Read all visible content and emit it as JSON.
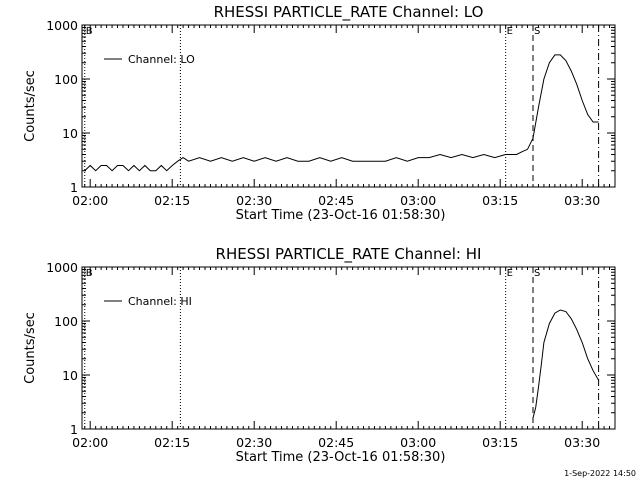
{
  "timestamp": "1-Sep-2022 14:50",
  "chart_data": [
    {
      "type": "line",
      "title": "RHESSI PARTICLE_RATE Channel: LO",
      "xlabel": "Start Time (23-Oct-16 01:58:30)",
      "ylabel": "Counts/sec",
      "y_scale": "log",
      "ylim": [
        1,
        1000
      ],
      "xlim": [
        "01:58:30",
        "03:36:00"
      ],
      "x_ticks": [
        "02:00",
        "02:15",
        "02:30",
        "02:45",
        "03:00",
        "03:15",
        "03:30"
      ],
      "y_ticks": [
        "1",
        "10",
        "100",
        "1000"
      ],
      "legend": {
        "position": "top-left",
        "entries": [
          "Channel: LO"
        ]
      },
      "markers": [
        {
          "label": "B",
          "time": "01:59:00",
          "style": "dotted"
        },
        {
          "label": "",
          "time": "02:16:30",
          "style": "dotted"
        },
        {
          "label": "E",
          "time": "03:16:00",
          "style": "dotted"
        },
        {
          "label": "S",
          "time": "03:21:00",
          "style": "dashed"
        },
        {
          "label": "",
          "time": "03:33:00",
          "style": "dash-dot"
        }
      ],
      "series": [
        {
          "name": "Channel: LO",
          "x": [
            "01:59:00",
            "02:00:00",
            "02:01:00",
            "02:02:00",
            "02:03:00",
            "02:04:00",
            "02:05:00",
            "02:06:00",
            "02:07:00",
            "02:08:00",
            "02:09:00",
            "02:10:00",
            "02:11:00",
            "02:12:00",
            "02:13:00",
            "02:14:00",
            "02:15:00",
            "02:16:00",
            "02:17:00",
            "02:18:00",
            "02:20:00",
            "02:22:00",
            "02:24:00",
            "02:26:00",
            "02:28:00",
            "02:30:00",
            "02:32:00",
            "02:34:00",
            "02:36:00",
            "02:38:00",
            "02:40:00",
            "02:42:00",
            "02:44:00",
            "02:46:00",
            "02:48:00",
            "02:50:00",
            "02:52:00",
            "02:54:00",
            "02:56:00",
            "02:58:00",
            "03:00:00",
            "03:02:00",
            "03:04:00",
            "03:06:00",
            "03:08:00",
            "03:10:00",
            "03:12:00",
            "03:14:00",
            "03:16:00",
            "03:17:00",
            "03:18:00",
            "03:19:00",
            "03:20:00",
            "03:21:00",
            "03:22:00",
            "03:23:00",
            "03:24:00",
            "03:25:00",
            "03:26:00",
            "03:27:00",
            "03:28:00",
            "03:29:00",
            "03:30:00",
            "03:31:00",
            "03:32:00",
            "03:33:00"
          ],
          "y": [
            2,
            2.5,
            2,
            2.5,
            2.5,
            2,
            2.5,
            2.5,
            2,
            2.5,
            2,
            2.5,
            2,
            2,
            2.5,
            2,
            2.5,
            3,
            3.5,
            3,
            3.5,
            3,
            3.5,
            3,
            3.5,
            3,
            3.5,
            3,
            3.5,
            3,
            3,
            3.5,
            3,
            3.5,
            3,
            3,
            3,
            3,
            3.5,
            3,
            3.5,
            3.5,
            4,
            3.5,
            4,
            3.5,
            4,
            3.5,
            4,
            4,
            4,
            4.5,
            5,
            8,
            30,
            100,
            200,
            280,
            280,
            220,
            140,
            80,
            40,
            22,
            16,
            16
          ]
        }
      ]
    },
    {
      "type": "line",
      "title": "RHESSI PARTICLE_RATE Channel: HI",
      "xlabel": "Start Time (23-Oct-16 01:58:30)",
      "ylabel": "Counts/sec",
      "y_scale": "log",
      "ylim": [
        1,
        1000
      ],
      "xlim": [
        "01:58:30",
        "03:36:00"
      ],
      "x_ticks": [
        "02:00",
        "02:15",
        "02:30",
        "02:45",
        "03:00",
        "03:15",
        "03:30"
      ],
      "y_ticks": [
        "1",
        "10",
        "100",
        "1000"
      ],
      "legend": {
        "position": "top-left",
        "entries": [
          "Channel: HI"
        ]
      },
      "markers": [
        {
          "label": "B",
          "time": "01:59:00",
          "style": "dotted"
        },
        {
          "label": "",
          "time": "02:16:30",
          "style": "dotted"
        },
        {
          "label": "E",
          "time": "03:16:00",
          "style": "dotted"
        },
        {
          "label": "S",
          "time": "03:21:00",
          "style": "dashed"
        },
        {
          "label": "",
          "time": "03:33:00",
          "style": "dash-dot"
        }
      ],
      "series": [
        {
          "name": "Channel: HI",
          "x": [
            "03:21:00",
            "03:21:30",
            "03:22:00",
            "03:22:30",
            "03:23:00",
            "03:24:00",
            "03:25:00",
            "03:26:00",
            "03:27:00",
            "03:28:00",
            "03:29:00",
            "03:30:00",
            "03:31:00",
            "03:32:00",
            "03:33:00"
          ],
          "y": [
            1.6,
            2.5,
            6,
            15,
            40,
            90,
            140,
            160,
            150,
            110,
            70,
            40,
            20,
            12,
            8
          ]
        }
      ]
    }
  ]
}
